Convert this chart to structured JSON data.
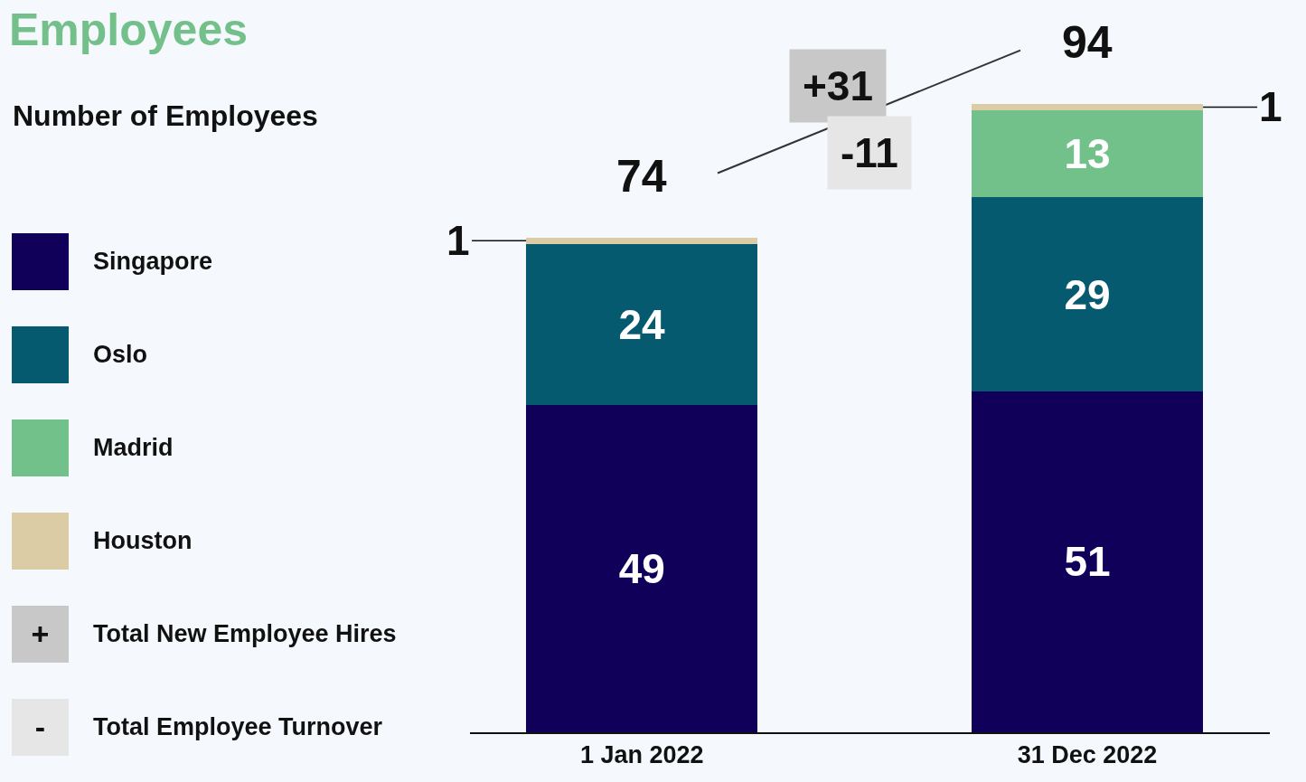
{
  "chart_data": {
    "type": "bar",
    "title": "Employees",
    "subtitle": "Number of Employees",
    "stacked": true,
    "data_labels": true,
    "legend": "left",
    "categories": [
      "1 Jan 2022",
      "31 Dec 2022"
    ],
    "series": [
      {
        "name": "Singapore",
        "color": "#10005a",
        "values": [
          49,
          51
        ]
      },
      {
        "name": "Oslo",
        "color": "#055a70",
        "values": [
          24,
          29
        ]
      },
      {
        "name": "Madrid",
        "color": "#72c08a",
        "values": [
          null,
          13
        ]
      },
      {
        "name": "Houston",
        "color": "#dccca5",
        "values": [
          1,
          1
        ]
      },
      {
        "name": "Total New Employee Hires",
        "color": "#c8c8c8",
        "values": [
          null,
          null
        ]
      },
      {
        "name": "Total Employee Turnover",
        "color": "#e6e6e6",
        "values": [
          null,
          null
        ]
      }
    ],
    "totals": [
      "74",
      "94"
    ],
    "annotations": [
      "+31",
      "-11",
      "+",
      "-"
    ]
  }
}
